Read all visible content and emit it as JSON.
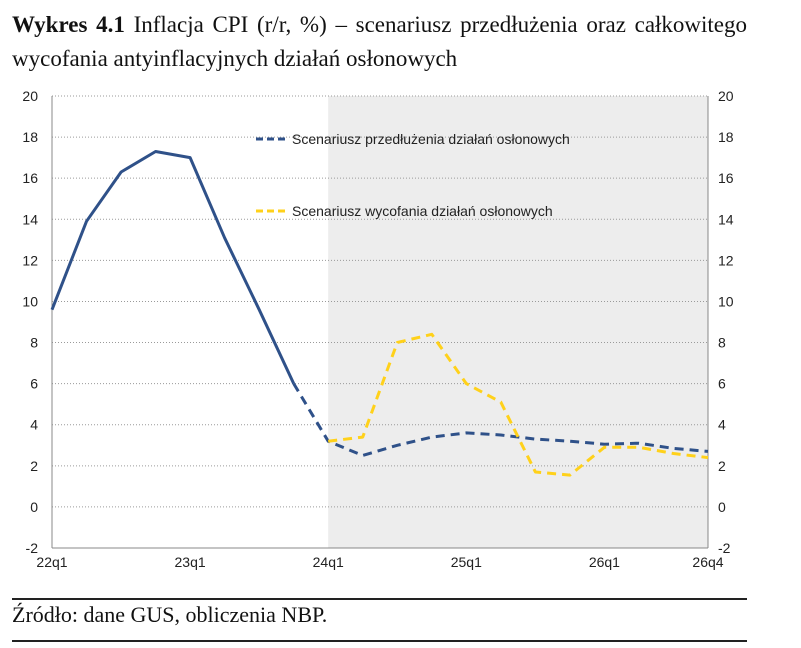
{
  "title": {
    "label": "Wykres 4.1",
    "text": "Inflacja CPI (r/r, %) – scenariusz przedłużenia oraz całkowitego wycofania antyinflacyjnych działań osłonowych"
  },
  "source": "Źródło: dane GUS, obliczenia NBP.",
  "chart_data": {
    "type": "line",
    "x": [
      "22q1",
      "22q2",
      "22q3",
      "22q4",
      "23q1",
      "23q2",
      "23q3",
      "23q4",
      "24q1",
      "24q2",
      "24q3",
      "24q4",
      "25q1",
      "25q2",
      "25q3",
      "25q4",
      "26q1",
      "26q2",
      "26q3",
      "26q4"
    ],
    "xtick_labels": [
      "22q1",
      "23q1",
      "24q1",
      "25q1",
      "26q1",
      "26q4"
    ],
    "ylim": [
      -2,
      20
    ],
    "yticks": [
      -2,
      0,
      2,
      4,
      6,
      8,
      10,
      12,
      14,
      16,
      18,
      20
    ],
    "secondary_y_axis": true,
    "shaded_region": {
      "from": "24q1",
      "to": "26q4",
      "color": "#ededed"
    },
    "grid": "horizontal dotted",
    "legend_position": "top-right",
    "history": {
      "x": [
        "22q1",
        "22q2",
        "22q3",
        "22q4",
        "23q1",
        "23q2",
        "23q3",
        "23q4"
      ],
      "values": [
        9.6,
        13.9,
        16.3,
        17.3,
        17.0,
        13.1,
        9.6,
        6.0
      ],
      "color": "#2f5189"
    },
    "series": [
      {
        "name": "Scenariusz przedłużenia działań osłonowych",
        "x": [
          "23q4",
          "24q1",
          "24q2",
          "24q3",
          "24q4",
          "25q1",
          "25q2",
          "25q3",
          "25q4",
          "26q1",
          "26q2",
          "26q3",
          "26q4"
        ],
        "values": [
          6.0,
          3.2,
          2.5,
          3.0,
          3.4,
          3.6,
          3.5,
          3.3,
          3.2,
          3.05,
          3.1,
          2.85,
          2.7
        ],
        "color": "#2f5189",
        "style": "dashed"
      },
      {
        "name": "Scenariusz wycofania działań osłonowych",
        "x": [
          "24q1",
          "24q2",
          "24q3",
          "24q4",
          "25q1",
          "25q2",
          "25q3",
          "25q4",
          "26q1",
          "26q2",
          "26q3",
          "26q4"
        ],
        "values": [
          3.2,
          3.4,
          8.0,
          8.4,
          6.0,
          5.1,
          1.7,
          1.55,
          2.9,
          2.9,
          2.6,
          2.4
        ],
        "color": "#ffd11a",
        "style": "dashed"
      }
    ]
  }
}
